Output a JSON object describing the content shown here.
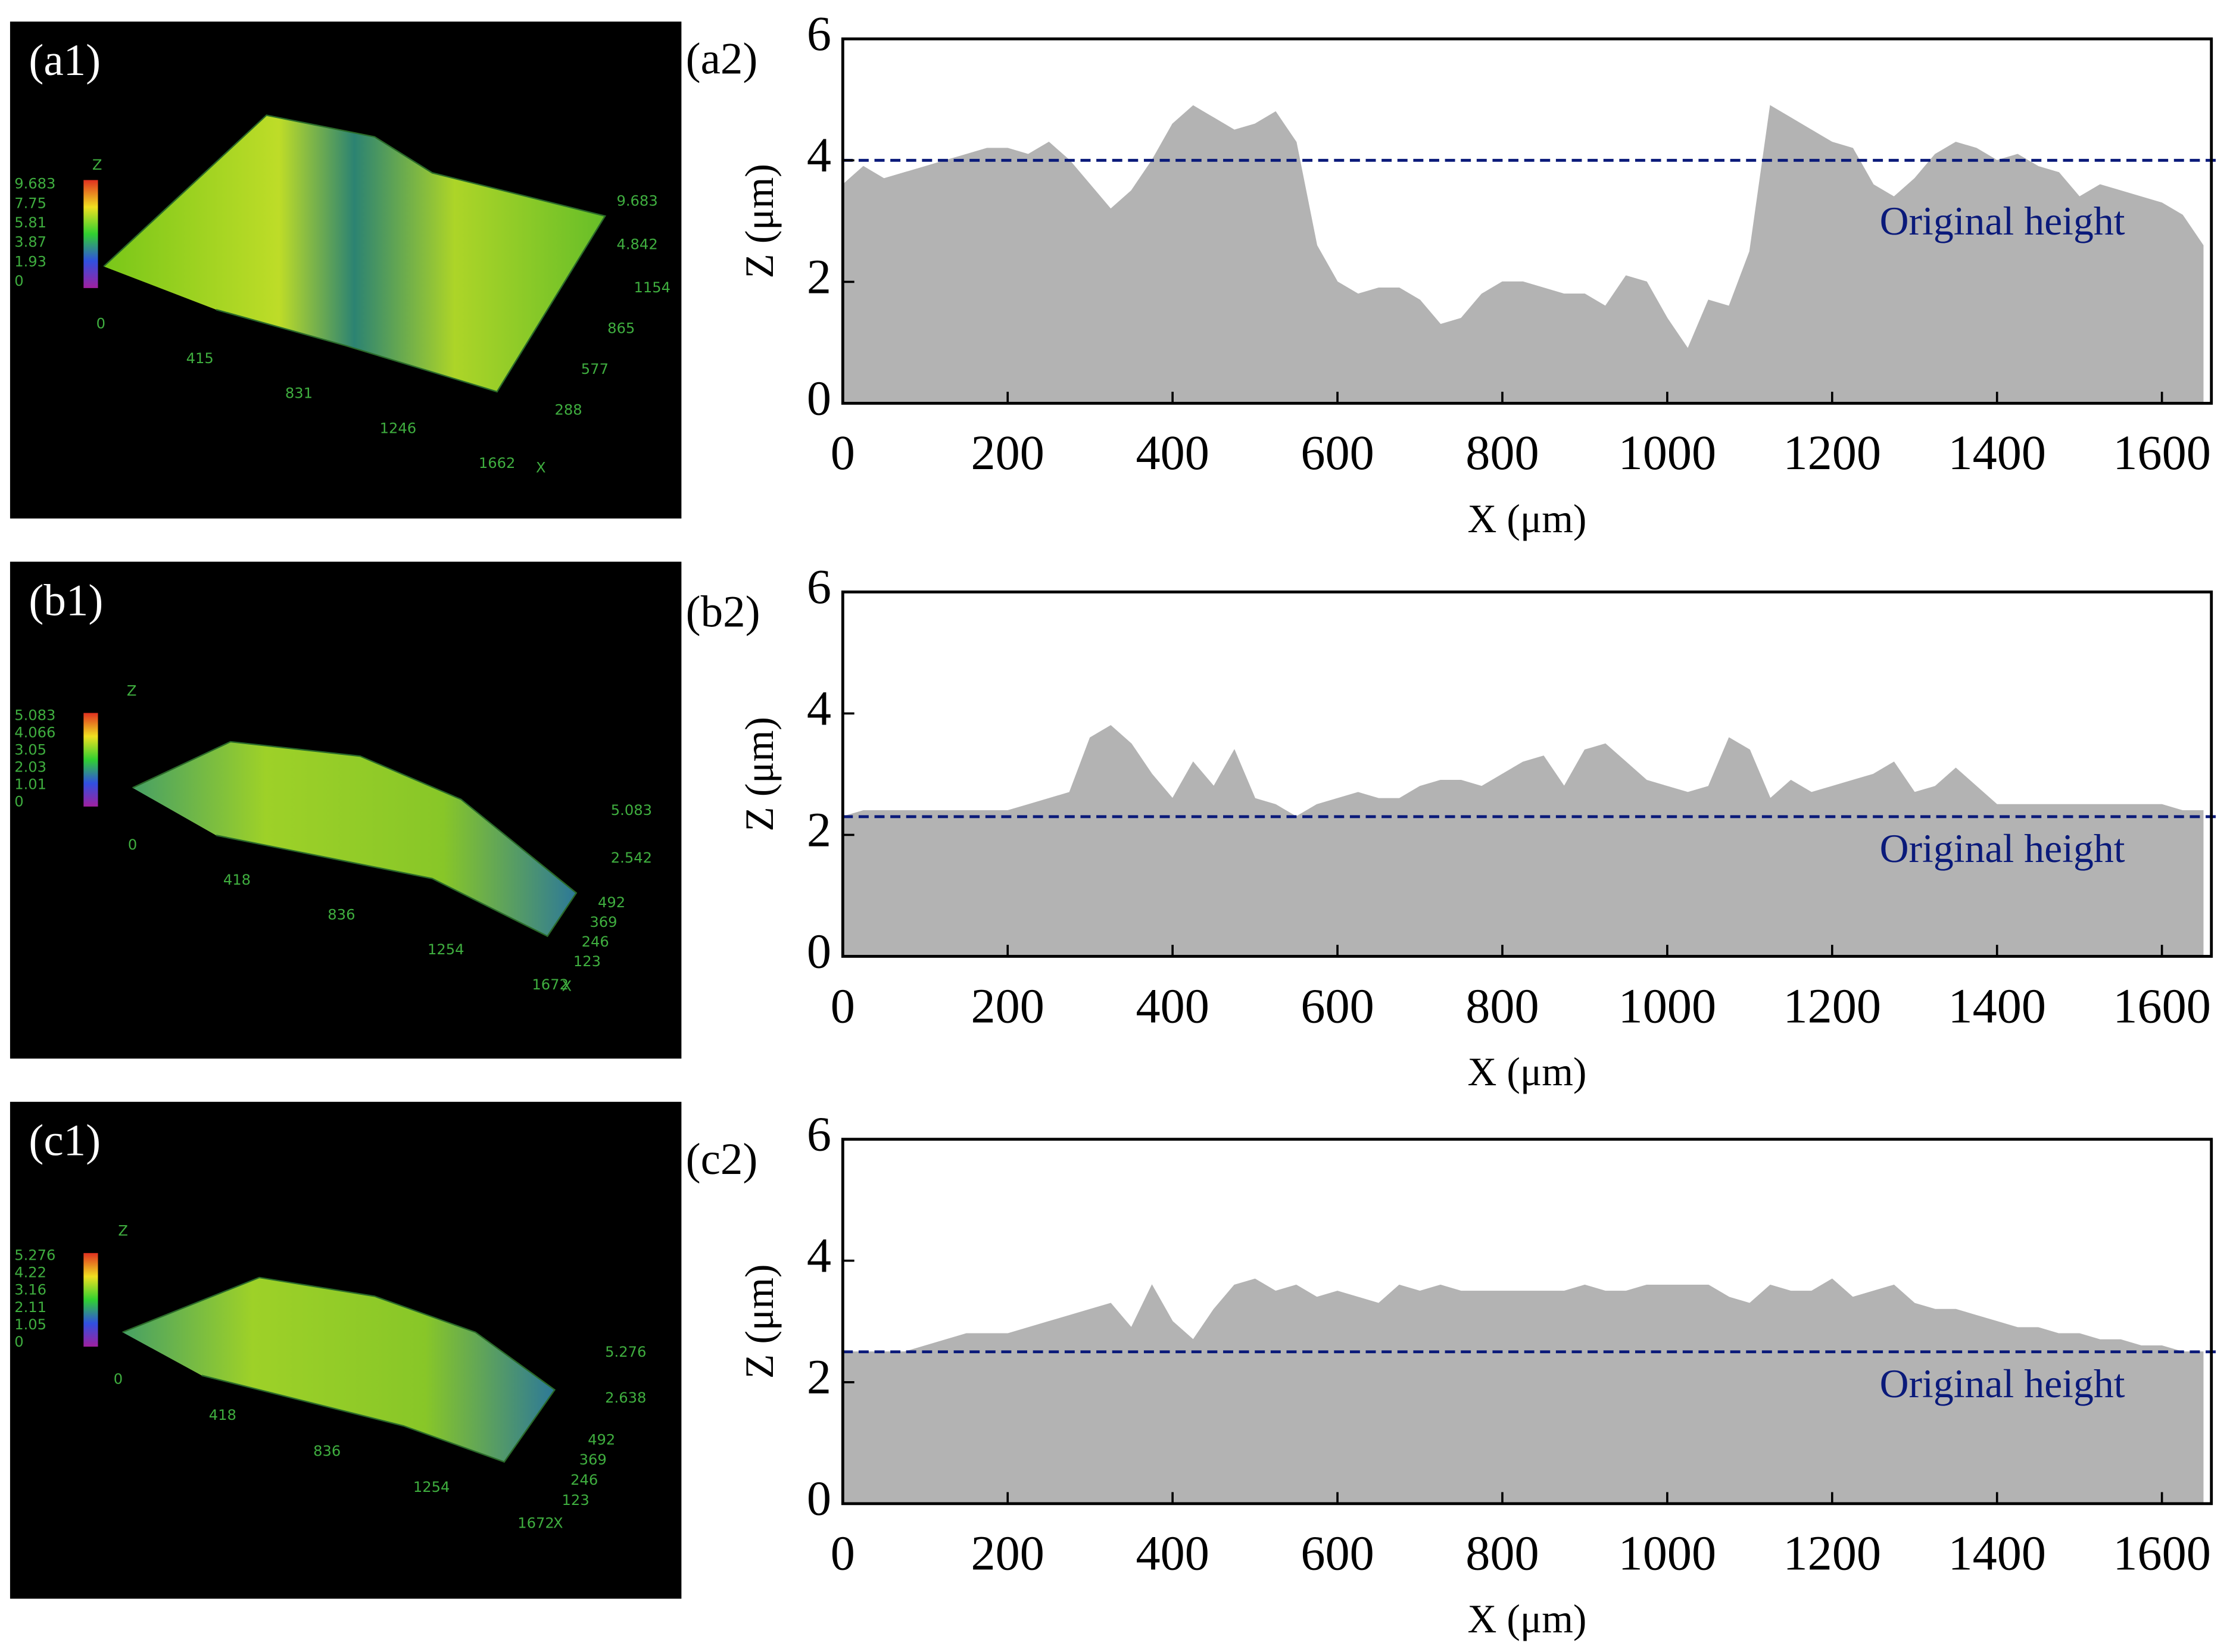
{
  "images": [
    {
      "label": "(a1)",
      "scale_labels": [
        "9.683",
        "7.75",
        "5.81",
        "3.87",
        "1.93",
        "0"
      ],
      "right_labels": [
        "9.683",
        "4.842"
      ],
      "x_labels": [
        "0",
        "415",
        "831",
        "1246",
        "1662"
      ],
      "y_labels": [
        "1154",
        "865",
        "577",
        "288"
      ],
      "axis_names": [
        "Z",
        "X"
      ]
    },
    {
      "label": "(b1)",
      "scale_labels": [
        "5.083",
        "4.066",
        "3.05",
        "2.03",
        "1.01",
        "0"
      ],
      "right_labels": [
        "5.083",
        "2.542"
      ],
      "x_labels": [
        "0",
        "418",
        "836",
        "1254",
        "1672"
      ],
      "y_labels": [
        "492",
        "369",
        "246",
        "123"
      ],
      "axis_names": [
        "Z",
        "X"
      ]
    },
    {
      "label": "(c1)",
      "scale_labels": [
        "5.276",
        "4.22",
        "3.16",
        "2.11",
        "1.05",
        "0"
      ],
      "right_labels": [
        "5.276",
        "2.638"
      ],
      "x_labels": [
        "0",
        "418",
        "836",
        "1254",
        "1672"
      ],
      "y_labels": [
        "492",
        "369",
        "246",
        "123"
      ],
      "axis_names": [
        "Z",
        "X"
      ]
    }
  ],
  "chart_data": [
    {
      "type": "area",
      "panel_label": "(a2)",
      "xlabel": "X (μm)",
      "ylabel": "Z (μm)",
      "color": "#b3b3b3",
      "x": [
        0,
        25,
        50,
        75,
        100,
        125,
        150,
        175,
        200,
        225,
        250,
        275,
        300,
        325,
        350,
        375,
        400,
        425,
        450,
        475,
        500,
        525,
        550,
        575,
        600,
        625,
        650,
        675,
        700,
        725,
        750,
        775,
        800,
        825,
        850,
        875,
        900,
        925,
        950,
        975,
        1000,
        1025,
        1050,
        1075,
        1100,
        1125,
        1150,
        1175,
        1200,
        1225,
        1250,
        1275,
        1300,
        1325,
        1350,
        1375,
        1400,
        1425,
        1450,
        1475,
        1500,
        1525,
        1550,
        1575,
        1600,
        1625,
        1650
      ],
      "values": [
        3.6,
        3.9,
        3.7,
        3.8,
        3.9,
        4.0,
        4.1,
        4.2,
        4.2,
        4.1,
        4.3,
        4.0,
        3.6,
        3.2,
        3.5,
        4.0,
        4.6,
        4.9,
        4.7,
        4.5,
        4.6,
        4.8,
        4.3,
        2.6,
        2.0,
        1.8,
        1.9,
        1.9,
        1.7,
        1.3,
        1.4,
        1.8,
        2.0,
        2.0,
        1.9,
        1.8,
        1.8,
        1.6,
        2.1,
        2.0,
        1.4,
        0.9,
        1.7,
        1.6,
        2.5,
        4.9,
        4.7,
        4.5,
        4.3,
        4.2,
        3.6,
        3.4,
        3.7,
        4.1,
        4.3,
        4.2,
        4.0,
        4.1,
        3.9,
        3.8,
        3.4,
        3.6,
        3.5,
        3.4,
        3.3,
        3.1,
        2.6
      ],
      "reference_line": {
        "value": 4,
        "label": "Original  height",
        "color": "#0a1a7a"
      },
      "xlim": [
        0,
        1660
      ],
      "ylim": [
        0,
        6
      ],
      "xticks": [
        0,
        200,
        400,
        600,
        800,
        1000,
        1200,
        1400,
        1600
      ],
      "yticks": [
        0,
        2,
        4,
        6
      ]
    },
    {
      "type": "area",
      "panel_label": "(b2)",
      "xlabel": "X (μm)",
      "ylabel": "Z (μm)",
      "color": "#b3b3b3",
      "x": [
        0,
        25,
        50,
        75,
        100,
        125,
        150,
        175,
        200,
        225,
        250,
        275,
        300,
        325,
        350,
        375,
        400,
        425,
        450,
        475,
        500,
        525,
        550,
        575,
        600,
        625,
        650,
        675,
        700,
        725,
        750,
        775,
        800,
        825,
        850,
        875,
        900,
        925,
        950,
        975,
        1000,
        1025,
        1050,
        1075,
        1100,
        1125,
        1150,
        1175,
        1200,
        1225,
        1250,
        1275,
        1300,
        1325,
        1350,
        1375,
        1400,
        1425,
        1450,
        1475,
        1500,
        1525,
        1550,
        1575,
        1600,
        1625,
        1650
      ],
      "values": [
        2.3,
        2.4,
        2.4,
        2.4,
        2.4,
        2.4,
        2.4,
        2.4,
        2.4,
        2.5,
        2.6,
        2.7,
        3.6,
        3.8,
        3.5,
        3.0,
        2.6,
        3.2,
        2.8,
        3.4,
        2.6,
        2.5,
        2.3,
        2.5,
        2.6,
        2.7,
        2.6,
        2.6,
        2.8,
        2.9,
        2.9,
        2.8,
        3.0,
        3.2,
        3.3,
        2.8,
        3.4,
        3.5,
        3.2,
        2.9,
        2.8,
        2.7,
        2.8,
        3.6,
        3.4,
        2.6,
        2.9,
        2.7,
        2.8,
        2.9,
        3.0,
        3.2,
        2.7,
        2.8,
        3.1,
        2.8,
        2.5,
        2.5,
        2.5,
        2.5,
        2.5,
        2.5,
        2.5,
        2.5,
        2.5,
        2.4,
        2.4
      ],
      "reference_line": {
        "value": 2.3,
        "label": "Original  height",
        "color": "#0a1a7a"
      },
      "xlim": [
        0,
        1660
      ],
      "ylim": [
        0,
        6
      ],
      "xticks": [
        0,
        200,
        400,
        600,
        800,
        1000,
        1200,
        1400,
        1600
      ],
      "yticks": [
        0,
        2,
        4,
        6
      ]
    },
    {
      "type": "area",
      "panel_label": "(c2)",
      "xlabel": "X (μm)",
      "ylabel": "Z (μm)",
      "color": "#b3b3b3",
      "x": [
        0,
        25,
        50,
        75,
        100,
        125,
        150,
        175,
        200,
        225,
        250,
        275,
        300,
        325,
        350,
        375,
        400,
        425,
        450,
        475,
        500,
        525,
        550,
        575,
        600,
        625,
        650,
        675,
        700,
        725,
        750,
        775,
        800,
        825,
        850,
        875,
        900,
        925,
        950,
        975,
        1000,
        1025,
        1050,
        1075,
        1100,
        1125,
        1150,
        1175,
        1200,
        1225,
        1250,
        1275,
        1300,
        1325,
        1350,
        1375,
        1400,
        1425,
        1450,
        1475,
        1500,
        1525,
        1550,
        1575,
        1600,
        1625,
        1650
      ],
      "values": [
        2.5,
        2.5,
        2.5,
        2.5,
        2.6,
        2.7,
        2.8,
        2.8,
        2.8,
        2.9,
        3.0,
        3.1,
        3.2,
        3.3,
        2.9,
        3.6,
        3.0,
        2.7,
        3.2,
        3.6,
        3.7,
        3.5,
        3.6,
        3.4,
        3.5,
        3.4,
        3.3,
        3.6,
        3.5,
        3.6,
        3.5,
        3.5,
        3.5,
        3.5,
        3.5,
        3.5,
        3.6,
        3.5,
        3.5,
        3.6,
        3.6,
        3.6,
        3.6,
        3.4,
        3.3,
        3.6,
        3.5,
        3.5,
        3.7,
        3.4,
        3.5,
        3.6,
        3.3,
        3.2,
        3.2,
        3.1,
        3.0,
        2.9,
        2.9,
        2.8,
        2.8,
        2.7,
        2.7,
        2.6,
        2.6,
        2.5,
        2.5
      ],
      "reference_line": {
        "value": 2.5,
        "label": "Original  height",
        "color": "#0a1a7a"
      },
      "xlim": [
        0,
        1660
      ],
      "ylim": [
        0,
        6
      ],
      "xticks": [
        0,
        200,
        400,
        600,
        800,
        1000,
        1200,
        1400,
        1600
      ],
      "yticks": [
        0,
        2,
        4,
        6
      ]
    }
  ]
}
